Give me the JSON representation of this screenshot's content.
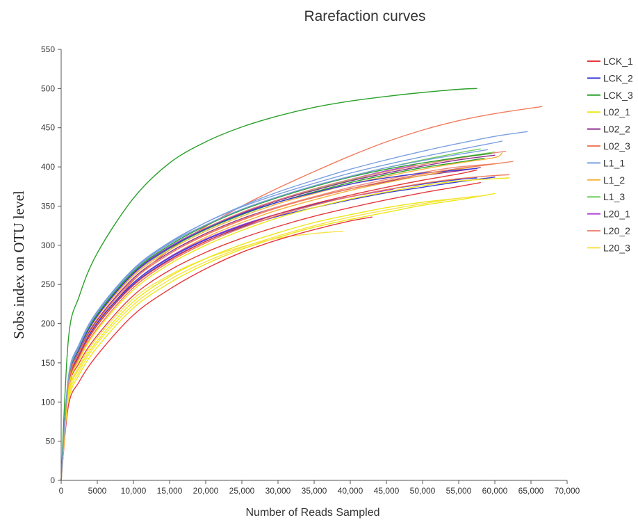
{
  "chart_data": {
    "type": "line",
    "title": "Rarefaction curves",
    "xlabel": "Number of Reads Sampled",
    "ylabel": "Sobs index on OTU level",
    "xlim": [
      0,
      70000
    ],
    "ylim": [
      0,
      550
    ],
    "xticks": [
      0,
      5000,
      10000,
      15000,
      20000,
      25000,
      30000,
      35000,
      40000,
      45000,
      50000,
      55000,
      60000,
      65000,
      70000
    ],
    "xtick_labels": [
      "0",
      "5000",
      "10,000",
      "15,000",
      "20,000",
      "25,000",
      "30,000",
      "35,000",
      "40,000",
      "45,000",
      "50,000",
      "55,000",
      "60,000",
      "65,000",
      "70,000"
    ],
    "yticks": [
      0,
      50,
      100,
      150,
      200,
      250,
      300,
      350,
      400,
      450,
      500,
      550
    ],
    "ytick_labels": [
      "0",
      "50",
      "100",
      "150",
      "200",
      "250",
      "300",
      "350",
      "400",
      "450",
      "500",
      "550"
    ],
    "grid": false,
    "legend_position": "right",
    "series": [
      {
        "name": "LCK_1",
        "color": "#e8383b",
        "x": [
          0,
          1000,
          2500,
          5000,
          10000,
          15000,
          20000,
          25000,
          30000,
          35000,
          40000,
          45000,
          50000,
          55000,
          58000
        ],
        "y": [
          0,
          115,
          150,
          185,
          236,
          268,
          291,
          309,
          324,
          337,
          348,
          358,
          367,
          375,
          380
        ]
      },
      {
        "name": "LCK_2",
        "color": "#3a3ad8",
        "x": [
          0,
          1000,
          2500,
          5000,
          10000,
          15000,
          20000,
          25000,
          30000,
          35000,
          40000,
          45000,
          50000,
          55000,
          60000
        ],
        "y": [
          0,
          122,
          160,
          199,
          250,
          282,
          305,
          323,
          337,
          348,
          358,
          367,
          374,
          381,
          387
        ]
      },
      {
        "name": "LCK_3",
        "color": "#2aa02a",
        "x": [
          0,
          1000,
          2500,
          5000,
          10000,
          15000,
          20000,
          25000,
          30000,
          35000,
          40000,
          45000,
          50000,
          55000,
          57500
        ],
        "y": [
          0,
          180,
          235,
          290,
          360,
          405,
          432,
          451,
          465,
          476,
          484,
          490,
          495,
          499,
          500
        ]
      },
      {
        "name": "L02_1",
        "color": "#ece817",
        "x": [
          0,
          1000,
          2500,
          5000,
          10000,
          15000,
          20000,
          25000,
          30000,
          35000,
          40000,
          45000,
          50000,
          55000,
          60000
        ],
        "y": [
          0,
          100,
          135,
          170,
          220,
          252,
          276,
          295,
          310,
          323,
          333,
          342,
          351,
          358,
          366
        ]
      },
      {
        "name": "L02_2",
        "color": "#8e2c8e",
        "x": [
          0,
          1000,
          2500,
          5000,
          10000,
          15000,
          20000,
          25000,
          30000,
          35000,
          40000,
          45000,
          50000,
          55000,
          58000
        ],
        "y": [
          0,
          125,
          165,
          205,
          258,
          291,
          315,
          334,
          349,
          361,
          372,
          381,
          389,
          395,
          399
        ]
      },
      {
        "name": "L02_3",
        "color": "#f07c5c",
        "x": [
          0,
          1000,
          2500,
          5000,
          10000,
          15000,
          20000,
          25000,
          30000,
          35000,
          40000,
          45000,
          50000,
          55000,
          60000,
          66500
        ],
        "y": [
          0,
          118,
          158,
          198,
          255,
          294,
          324,
          350,
          373,
          394,
          414,
          432,
          447,
          459,
          468,
          477
        ]
      },
      {
        "name": "L1_1",
        "color": "#7a9fe0",
        "x": [
          0,
          1000,
          2500,
          5000,
          10000,
          15000,
          20000,
          25000,
          30000,
          35000,
          40000,
          45000,
          50000,
          55000,
          60000,
          64500
        ],
        "y": [
          0,
          130,
          172,
          214,
          269,
          303,
          329,
          350,
          368,
          383,
          397,
          409,
          420,
          430,
          439,
          445
        ]
      },
      {
        "name": "L1_2",
        "color": "#f5b33c",
        "x": [
          0,
          1000,
          2500,
          5000,
          10000,
          15000,
          20000,
          25000,
          30000,
          35000,
          40000,
          45000,
          50000,
          55000,
          60000,
          61800
        ],
        "y": [
          0,
          120,
          160,
          200,
          252,
          285,
          310,
          329,
          345,
          358,
          370,
          380,
          389,
          397,
          404,
          406
        ]
      },
      {
        "name": "L1_3",
        "color": "#6fcf5a",
        "x": [
          0,
          1000,
          2500,
          5000,
          10000,
          15000,
          20000,
          25000,
          30000,
          35000,
          40000,
          45000,
          50000,
          55000,
          60000
        ],
        "y": [
          0,
          128,
          170,
          212,
          265,
          298,
          322,
          341,
          357,
          371,
          383,
          394,
          403,
          412,
          419
        ]
      },
      {
        "name": "L20_1",
        "color": "#b23fd8",
        "x": [
          0,
          1000,
          2500,
          5000,
          10000,
          15000,
          20000,
          25000,
          30000,
          35000,
          40000,
          45000,
          46000
        ],
        "y": [
          0,
          122,
          161,
          201,
          252,
          285,
          308,
          326,
          340,
          352,
          362,
          370,
          372
        ]
      },
      {
        "name": "L20_2",
        "color": "#ee8a78",
        "x": [
          0,
          1000,
          2500,
          5000,
          10000,
          15000,
          20000,
          25000,
          30000,
          35000,
          40000,
          45000,
          50000,
          55000,
          60000,
          62500
        ],
        "y": [
          0,
          124,
          163,
          203,
          256,
          289,
          314,
          333,
          349,
          362,
          374,
          384,
          393,
          400,
          404,
          407
        ]
      },
      {
        "name": "L20_3",
        "color": "#f7e24a",
        "x": [
          0,
          1000,
          2500,
          5000,
          10000,
          15000,
          20000,
          25000,
          30000,
          35000,
          39000
        ],
        "y": [
          0,
          110,
          146,
          182,
          232,
          262,
          283,
          298,
          309,
          315,
          318
        ]
      },
      {
        "name": "",
        "color": "#e8383b",
        "x": [
          0,
          1000,
          2500,
          5000,
          10000,
          15000,
          20000,
          25000,
          30000,
          35000,
          40000,
          43000
        ],
        "y": [
          0,
          95,
          126,
          160,
          211,
          244,
          270,
          291,
          307,
          320,
          331,
          336
        ]
      },
      {
        "name": "",
        "color": "#3a3ad8",
        "x": [
          0,
          1000,
          2500,
          5000,
          10000,
          15000,
          20000,
          25000,
          30000,
          35000,
          40000,
          45000,
          50000,
          55000,
          57500
        ],
        "y": [
          0,
          122,
          161,
          201,
          252,
          284,
          307,
          325,
          340,
          352,
          362,
          371,
          378,
          384,
          386
        ]
      },
      {
        "name": "",
        "color": "#2aa02a",
        "x": [
          0,
          1000,
          2500,
          5000,
          10000,
          15000,
          20000,
          25000,
          30000,
          35000,
          40000,
          45000,
          50000,
          55000,
          58500
        ],
        "y": [
          0,
          126,
          167,
          209,
          263,
          296,
          320,
          339,
          355,
          368,
          380,
          390,
          399,
          406,
          411
        ]
      },
      {
        "name": "",
        "color": "#ece817",
        "x": [
          0,
          1000,
          2500,
          5000,
          10000,
          15000,
          20000,
          25000,
          30000,
          35000,
          40000,
          45000,
          50000,
          55000,
          57000
        ],
        "y": [
          0,
          108,
          143,
          178,
          228,
          260,
          283,
          301,
          316,
          329,
          339,
          348,
          355,
          360,
          362
        ]
      },
      {
        "name": "",
        "color": "#8e2c8e",
        "x": [
          0,
          1000,
          2500,
          5000,
          10000,
          15000,
          20000,
          25000,
          30000,
          35000,
          40000,
          45000,
          50000,
          55000,
          60000
        ],
        "y": [
          0,
          127,
          168,
          210,
          264,
          298,
          322,
          341,
          357,
          370,
          382,
          392,
          401,
          409,
          415
        ]
      },
      {
        "name": "",
        "color": "#f07c5c",
        "x": [
          0,
          1000,
          2500,
          5000,
          10000,
          15000,
          20000,
          25000,
          30000,
          35000,
          40000,
          45000,
          50000,
          55000,
          60000,
          62000
        ],
        "y": [
          0,
          117,
          155,
          194,
          246,
          279,
          303,
          322,
          338,
          351,
          362,
          371,
          379,
          385,
          389,
          390
        ]
      },
      {
        "name": "",
        "color": "#7a9fe0",
        "x": [
          0,
          1000,
          2500,
          5000,
          10000,
          15000,
          20000,
          25000,
          30000,
          35000,
          40000,
          45000,
          50000,
          55000,
          60000,
          61000
        ],
        "y": [
          0,
          132,
          174,
          216,
          270,
          304,
          329,
          349,
          365,
          379,
          392,
          403,
          413,
          422,
          431,
          433
        ]
      },
      {
        "name": "",
        "color": "#f5b33c",
        "x": [
          0,
          1000,
          2500,
          5000,
          10000,
          15000,
          20000,
          25000,
          30000,
          35000,
          40000,
          45000,
          50000,
          55000,
          60000,
          61000
        ],
        "y": [
          0,
          126,
          167,
          208,
          261,
          294,
          318,
          337,
          353,
          366,
          378,
          388,
          397,
          405,
          412,
          418
        ]
      },
      {
        "name": "",
        "color": "#6fcf5a",
        "x": [
          0,
          1000,
          2500,
          5000,
          10000,
          15000,
          20000,
          25000,
          30000,
          35000,
          40000,
          45000,
          50000,
          55000,
          58000
        ],
        "y": [
          0,
          129,
          171,
          213,
          267,
          300,
          325,
          345,
          361,
          375,
          388,
          399,
          409,
          418,
          423
        ]
      },
      {
        "name": "",
        "color": "#b23fd8",
        "x": [
          0,
          1000,
          2500,
          5000,
          10000,
          15000,
          20000,
          25000,
          30000,
          35000,
          40000,
          45000,
          49000
        ],
        "y": [
          0,
          128,
          169,
          211,
          265,
          298,
          322,
          342,
          358,
          372,
          384,
          395,
          402
        ]
      },
      {
        "name": "",
        "color": "#ee8a78",
        "x": [
          0,
          1000,
          2500,
          5000,
          10000,
          15000,
          20000,
          25000,
          30000,
          35000,
          40000,
          45000,
          50000,
          55000,
          60000,
          61500
        ],
        "y": [
          0,
          127,
          168,
          209,
          263,
          297,
          322,
          342,
          358,
          372,
          384,
          394,
          403,
          411,
          418,
          420
        ]
      },
      {
        "name": "",
        "color": "#f7e24a",
        "x": [
          0,
          1000,
          2500,
          5000,
          10000,
          15000,
          20000,
          25000,
          30000,
          35000,
          40000,
          45000,
          50000,
          55000,
          58000
        ],
        "y": [
          0,
          104,
          139,
          175,
          224,
          256,
          279,
          297,
          312,
          325,
          336,
          345,
          353,
          360,
          363
        ]
      },
      {
        "name": "",
        "color": "#e8383b",
        "x": [
          0,
          1000,
          2500,
          5000,
          10000,
          15000,
          20000,
          25000,
          30000,
          35000,
          40000,
          45000,
          50000,
          55000,
          57500
        ],
        "y": [
          0,
          120,
          159,
          198,
          249,
          281,
          305,
          324,
          340,
          353,
          364,
          374,
          383,
          391,
          396
        ]
      },
      {
        "name": "",
        "color": "#3a3ad8",
        "x": [
          0,
          1000,
          2500,
          5000,
          10000,
          15000,
          20000,
          25000,
          30000,
          35000,
          40000,
          45000,
          50000,
          55000,
          57500
        ],
        "y": [
          0,
          127,
          168,
          210,
          264,
          297,
          321,
          340,
          355,
          367,
          378,
          386,
          392,
          396,
          398
        ]
      },
      {
        "name": "",
        "color": "#2aa02a",
        "x": [
          0,
          1000,
          2500,
          5000,
          10000,
          15000,
          20000,
          25000,
          30000,
          35000,
          40000,
          45000,
          50000,
          55000,
          59500
        ],
        "y": [
          0,
          128,
          170,
          212,
          266,
          300,
          325,
          345,
          361,
          375,
          387,
          397,
          405,
          412,
          417
        ]
      },
      {
        "name": "",
        "color": "#ece817",
        "x": [
          0,
          1000,
          2500,
          5000,
          10000,
          15000,
          20000,
          25000,
          30000,
          35000,
          40000,
          45000,
          50000,
          55000,
          62000
        ],
        "y": [
          0,
          116,
          154,
          192,
          243,
          276,
          300,
          319,
          335,
          348,
          359,
          368,
          376,
          382,
          386
        ]
      },
      {
        "name": "",
        "color": "#f07c5c",
        "x": [
          0,
          1000,
          2500,
          5000,
          10000,
          15000,
          20000,
          25000,
          30000,
          35000,
          40000,
          45000,
          50000,
          55000,
          60000
        ],
        "y": [
          0,
          123,
          163,
          203,
          256,
          289,
          313,
          332,
          348,
          361,
          372,
          382,
          391,
          398,
          404
        ]
      },
      {
        "name": "",
        "color": "#7a9fe0",
        "x": [
          0,
          1000,
          2500,
          5000,
          10000,
          15000,
          20000,
          25000,
          30000,
          35000,
          40000,
          45000,
          50000,
          55000,
          59000
        ],
        "y": [
          0,
          129,
          171,
          214,
          268,
          302,
          326,
          346,
          362,
          376,
          388,
          399,
          408,
          416,
          422
        ]
      }
    ]
  }
}
